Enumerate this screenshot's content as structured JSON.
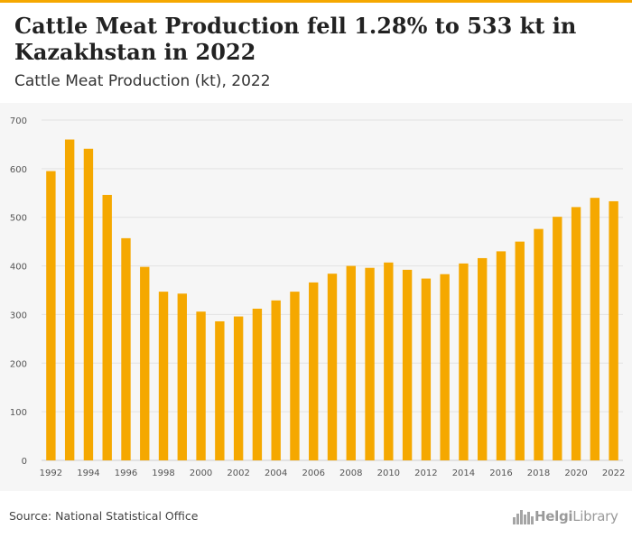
{
  "title": "Cattle Meat Production fell 1.28% to 533 kt in Kazakhstan in 2022",
  "subtitle": "Cattle Meat Production (kt), 2022",
  "source": "Source: National Statistical Office",
  "logo": {
    "name_bold": "Helgi",
    "name_rest": "Library",
    "icon": "city-skyline-icon"
  },
  "colors": {
    "bar": "#f5a800",
    "accent": "#f5a800",
    "grid": "#e2e2e2",
    "plot_bg": "#f6f6f6"
  },
  "chart_data": {
    "type": "bar",
    "title": "",
    "xlabel": "",
    "ylabel": "",
    "ylim": [
      0,
      700
    ],
    "yticks": [
      0,
      100,
      200,
      300,
      400,
      500,
      600,
      700
    ],
    "grid": true,
    "categories": [
      "1992",
      "1993",
      "1994",
      "1995",
      "1996",
      "1997",
      "1998",
      "1999",
      "2000",
      "2001",
      "2002",
      "2003",
      "2004",
      "2005",
      "2006",
      "2007",
      "2008",
      "2009",
      "2010",
      "2011",
      "2012",
      "2013",
      "2014",
      "2015",
      "2016",
      "2017",
      "2018",
      "2019",
      "2020",
      "2021",
      "2022"
    ],
    "x_tick_labels": [
      "1992",
      "1994",
      "1996",
      "1998",
      "2000",
      "2002",
      "2004",
      "2006",
      "2008",
      "2010",
      "2012",
      "2014",
      "2016",
      "2018",
      "2020",
      "2022"
    ],
    "values": [
      595,
      660,
      641,
      546,
      457,
      398,
      347,
      343,
      306,
      286,
      296,
      312,
      329,
      347,
      366,
      384,
      400,
      396,
      407,
      392,
      374,
      383,
      405,
      416,
      430,
      450,
      476,
      501,
      521,
      540,
      533
    ]
  }
}
